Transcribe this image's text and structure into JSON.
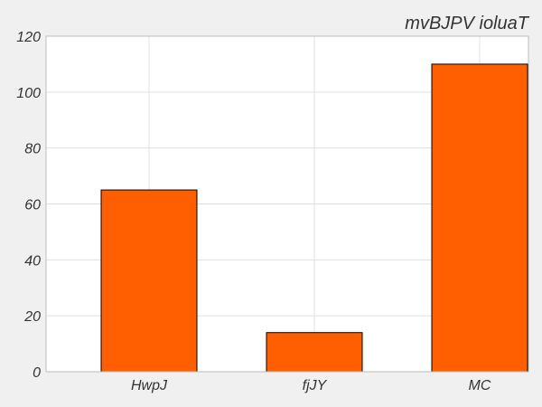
{
  "chart_data": {
    "type": "bar",
    "title": "mvBJPV ioluaT",
    "categories": [
      "HwpJ",
      "fjJY",
      "MC"
    ],
    "values": [
      65,
      14,
      110
    ],
    "xlabel": "",
    "ylabel": "",
    "ylim": [
      0,
      120
    ],
    "yticks": [
      0,
      20,
      40,
      60,
      80,
      100,
      120
    ],
    "grid": true,
    "legend": "none",
    "colors": {
      "bar": "#ff5f00",
      "bar_edge": "#000000",
      "plot_bg": "#ffffff",
      "figure_bg": "#f0f0f0",
      "grid": "#e0e0e0",
      "axes_edge": "#bcbcbc",
      "text": "#333333"
    }
  }
}
